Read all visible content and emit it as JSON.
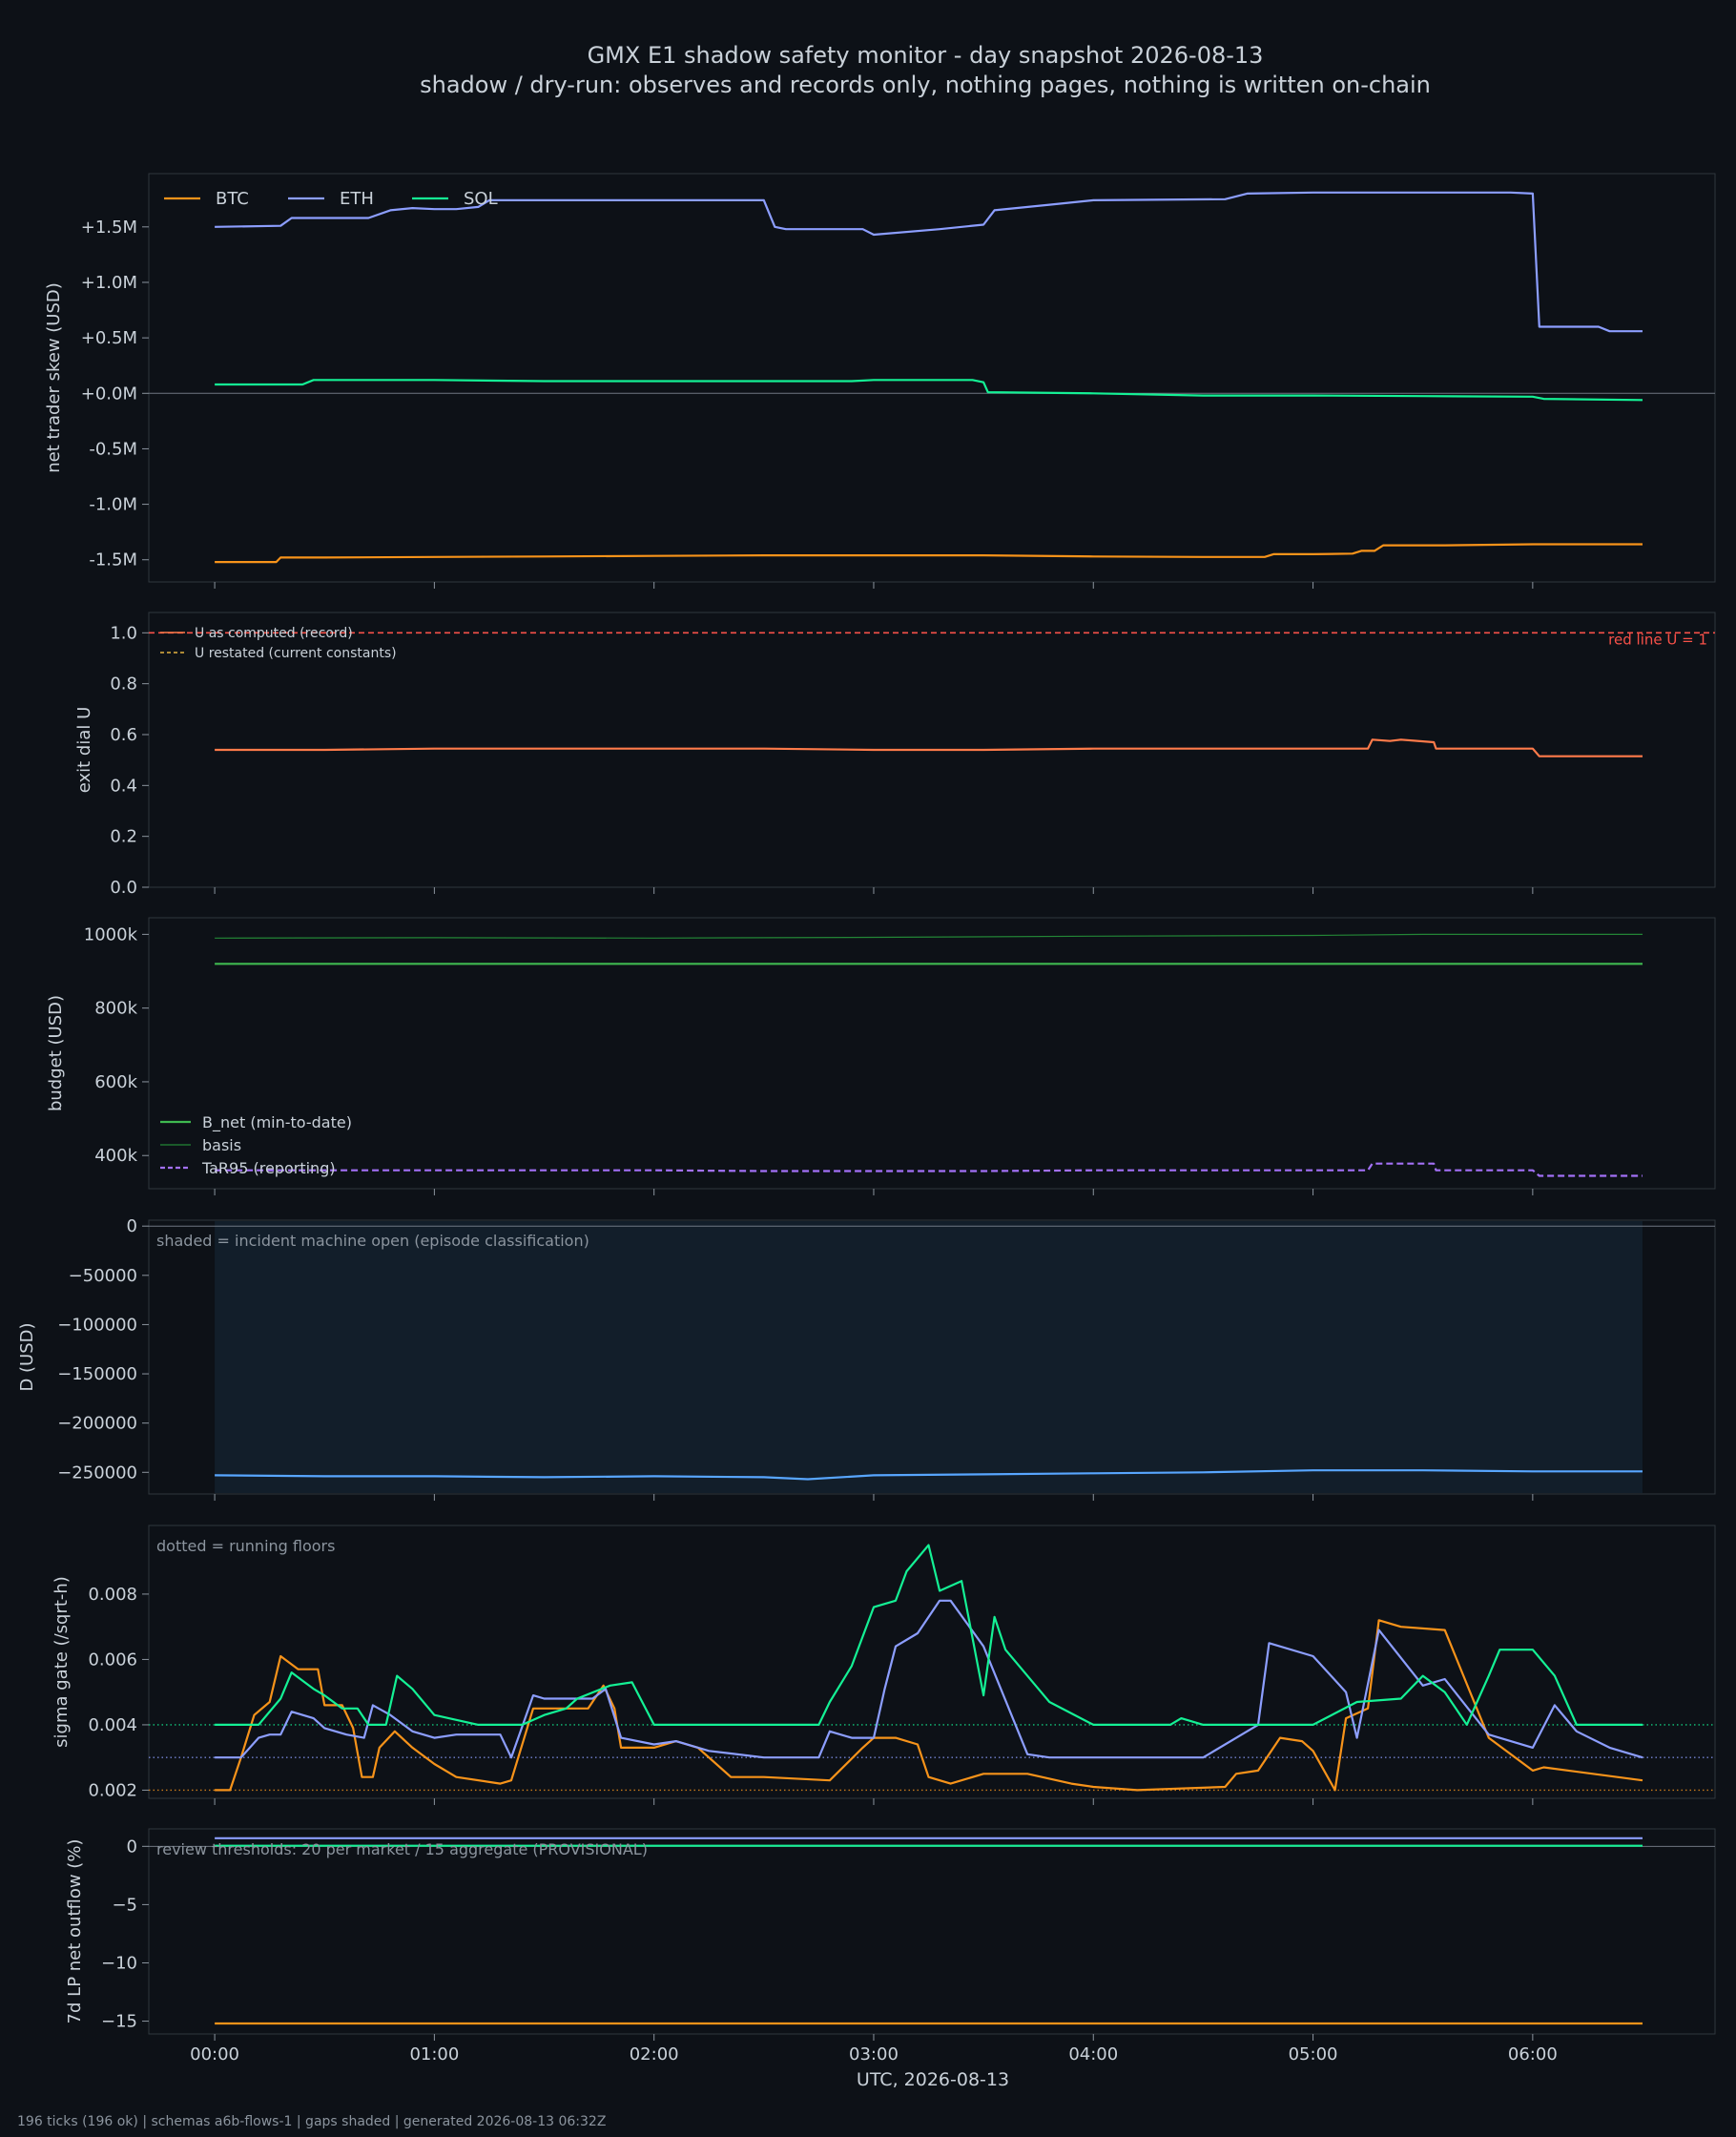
{
  "figure": {
    "title": "GMX E1 shadow safety monitor - day snapshot 2026-08-13",
    "subtitle": "shadow / dry-run: observes and records only, nothing pages, nothing is written on-chain",
    "footer": "196 ticks (196 ok) | schemas a6b-flows-1 | gaps shaded | generated 2026-08-13 06:32Z",
    "xlabel": "UTC, 2026-08-13",
    "x_tick_labels": [
      "00:00",
      "01:00",
      "02:00",
      "03:00",
      "04:00",
      "05:00",
      "06:00"
    ],
    "colors": {
      "background": "#0d1117",
      "panel_border": "#30363d",
      "text": "#c9d1d9",
      "muted_text": "#8b949e",
      "btc": "#f7931a",
      "eth": "#8c9eff",
      "sol": "#14f195",
      "u_computed": "#ff7b4a",
      "red_line": "#f85149",
      "u_restated": "#e3b341",
      "b_net": "#3fb950",
      "basis": "#238636",
      "tar95": "#a371f7",
      "d_line": "#58a6ff",
      "incident_shade": "#121e2a"
    }
  },
  "chart_data": [
    {
      "type": "line",
      "ylabel": "net trader skew (USD)",
      "y_tick_labels": [
        "+1.5M",
        "+1.0M",
        "+0.5M",
        "+0.0M",
        "-0.5M",
        "-1.0M",
        "-1.5M"
      ],
      "y_ticks": [
        1500000,
        1000000,
        500000,
        0,
        -500000,
        -1000000,
        -1500000
      ],
      "ylim": [
        -1700000,
        1980000
      ],
      "xlim": [
        -0.3,
        6.83
      ],
      "legend": "top-left, horizontal",
      "series": [
        {
          "name": "BTC",
          "color_key": "btc",
          "x": [
            0,
            0.28,
            0.3,
            0.5,
            1.0,
            1.5,
            2.0,
            2.5,
            3.0,
            3.5,
            4.0,
            4.5,
            4.78,
            4.82,
            5.0,
            5.18,
            5.22,
            5.28,
            5.32,
            5.6,
            6.0,
            6.5
          ],
          "y": [
            -1520000,
            -1520000,
            -1480000,
            -1480000,
            -1475000,
            -1470000,
            -1465000,
            -1460000,
            -1460000,
            -1460000,
            -1470000,
            -1475000,
            -1475000,
            -1450000,
            -1450000,
            -1445000,
            -1420000,
            -1420000,
            -1370000,
            -1370000,
            -1360000,
            -1360000
          ]
        },
        {
          "name": "ETH",
          "color_key": "eth",
          "x": [
            0,
            0.3,
            0.35,
            0.7,
            0.8,
            0.9,
            1.0,
            1.1,
            1.2,
            1.25,
            1.5,
            2.0,
            2.5,
            2.55,
            2.6,
            2.95,
            3.0,
            3.3,
            3.5,
            3.55,
            3.8,
            4.0,
            4.6,
            4.7,
            5.0,
            5.5,
            5.9,
            6.0,
            6.03,
            6.3,
            6.35,
            6.5
          ],
          "y": [
            1500000,
            1510000,
            1580000,
            1580000,
            1650000,
            1670000,
            1660000,
            1660000,
            1680000,
            1740000,
            1740000,
            1740000,
            1740000,
            1500000,
            1480000,
            1480000,
            1430000,
            1480000,
            1520000,
            1650000,
            1700000,
            1740000,
            1750000,
            1800000,
            1810000,
            1810000,
            1810000,
            1800000,
            600000,
            600000,
            560000,
            560000
          ]
        },
        {
          "name": "SOL",
          "color_key": "sol",
          "x": [
            0,
            0.4,
            0.45,
            1.0,
            1.5,
            2.0,
            2.5,
            2.9,
            3.0,
            3.45,
            3.5,
            3.52,
            4.0,
            4.5,
            5.0,
            5.5,
            6.0,
            6.05,
            6.5
          ],
          "y": [
            80000,
            80000,
            120000,
            120000,
            110000,
            110000,
            110000,
            110000,
            120000,
            120000,
            100000,
            10000,
            0,
            -20000,
            -20000,
            -25000,
            -30000,
            -50000,
            -60000
          ]
        }
      ]
    },
    {
      "type": "line",
      "ylabel": "exit dial U",
      "y_tick_labels": [
        "1.0",
        "0.8",
        "0.6",
        "0.4",
        "0.2",
        "0.0"
      ],
      "y_ticks": [
        1.0,
        0.8,
        0.6,
        0.4,
        0.2,
        0.0
      ],
      "ylim": [
        0,
        1.08
      ],
      "xlim": [
        -0.3,
        6.83
      ],
      "legend": "top-left",
      "annotation": "red line U = 1",
      "red_line_value": 1.0,
      "series": [
        {
          "name": "U as computed (record)",
          "color_key": "u_computed",
          "x": [
            0,
            0.5,
            1.0,
            1.5,
            2.0,
            2.5,
            3.0,
            3.5,
            4.0,
            4.5,
            5.0,
            5.25,
            5.27,
            5.35,
            5.4,
            5.55,
            5.56,
            6.0,
            6.03,
            6.5
          ],
          "y": [
            0.54,
            0.54,
            0.545,
            0.545,
            0.545,
            0.545,
            0.54,
            0.54,
            0.545,
            0.545,
            0.545,
            0.545,
            0.58,
            0.575,
            0.58,
            0.57,
            0.545,
            0.545,
            0.515,
            0.515
          ]
        },
        {
          "name": "U restated (current constants)",
          "color_key": "u_restated",
          "dashed": true,
          "x": [
            0,
            6.5
          ],
          "y": [
            1.0,
            1.0
          ]
        }
      ]
    },
    {
      "type": "line",
      "ylabel": "budget (USD)",
      "y_tick_labels": [
        "1000k",
        "800k",
        "600k",
        "400k"
      ],
      "y_ticks": [
        1000000,
        800000,
        600000,
        400000
      ],
      "ylim": [
        310000,
        1045000
      ],
      "xlim": [
        -0.3,
        6.83
      ],
      "legend": "bottom-left",
      "series": [
        {
          "name": "B_net (min-to-date)",
          "color_key": "b_net",
          "x": [
            0,
            6.5
          ],
          "y": [
            920000,
            920000
          ]
        },
        {
          "name": "basis",
          "color_key": "basis",
          "x": [
            0,
            1.0,
            2.0,
            3.0,
            4.0,
            5.0,
            5.5,
            6.0,
            6.5
          ],
          "y": [
            990000,
            991000,
            990000,
            992000,
            995000,
            997000,
            1000000,
            1000000,
            1000000
          ]
        },
        {
          "name": "TaR95 (reporting)",
          "color_key": "tar95",
          "dashed": true,
          "x": [
            0,
            1.0,
            2.0,
            2.5,
            3.0,
            3.5,
            4.0,
            4.5,
            5.0,
            5.25,
            5.27,
            5.55,
            5.56,
            6.0,
            6.03,
            6.5
          ],
          "y": [
            360000,
            360000,
            360000,
            358000,
            358000,
            358000,
            360000,
            360000,
            360000,
            360000,
            378000,
            378000,
            360000,
            360000,
            345000,
            345000
          ]
        }
      ]
    },
    {
      "type": "line",
      "ylabel": "D (USD)",
      "y_tick_labels": [
        "0",
        "−50000",
        "−100000",
        "−150000",
        "−200000",
        "−250000"
      ],
      "y_ticks": [
        0,
        -50000,
        -100000,
        -150000,
        -200000,
        -250000
      ],
      "ylim": [
        -272000,
        6000
      ],
      "xlim": [
        -0.3,
        6.83
      ],
      "annotation": "shaded = incident machine open (episode classification)",
      "shade_x": [
        0,
        6.5
      ],
      "series": [
        {
          "name": "D",
          "color_key": "d_line",
          "x": [
            0,
            0.5,
            1.0,
            1.5,
            2.0,
            2.5,
            2.7,
            3.0,
            3.5,
            4.0,
            4.5,
            5.0,
            5.5,
            6.0,
            6.5
          ],
          "y": [
            -253000,
            -254000,
            -254000,
            -255000,
            -254000,
            -255000,
            -257000,
            -253000,
            -252000,
            -251000,
            -250000,
            -248000,
            -248000,
            -249000,
            -249000
          ]
        }
      ]
    },
    {
      "type": "line",
      "ylabel": "sigma gate (/sqrt-h)",
      "y_tick_labels": [
        "0.008",
        "0.006",
        "0.004",
        "0.002"
      ],
      "y_ticks": [
        0.008,
        0.006,
        0.004,
        0.002
      ],
      "ylim": [
        0.00175,
        0.0101
      ],
      "xlim": [
        -0.3,
        6.83
      ],
      "annotation": "dotted = running floors",
      "floors": [
        {
          "color_key": "sol",
          "value": 0.004
        },
        {
          "color_key": "eth",
          "value": 0.003
        },
        {
          "color_key": "btc",
          "value": 0.002
        }
      ],
      "series": [
        {
          "name": "BTC",
          "color_key": "btc",
          "x": [
            0,
            0.07,
            0.12,
            0.18,
            0.25,
            0.3,
            0.38,
            0.47,
            0.5,
            0.58,
            0.63,
            0.67,
            0.72,
            0.75,
            0.82,
            0.9,
            1.0,
            1.1,
            1.3,
            1.35,
            1.45,
            1.55,
            1.7,
            1.77,
            1.82,
            1.85,
            2.0,
            2.1,
            2.2,
            2.35,
            2.5,
            2.8,
            2.95,
            3.0,
            3.1,
            3.2,
            3.25,
            3.35,
            3.5,
            3.7,
            3.9,
            4.0,
            4.2,
            4.6,
            4.65,
            4.75,
            4.85,
            4.95,
            5.0,
            5.1,
            5.15,
            5.25,
            5.3,
            5.4,
            5.6,
            5.8,
            6.0,
            6.05,
            6.5
          ],
          "y": [
            0.002,
            0.002,
            0.003,
            0.0043,
            0.0047,
            0.0061,
            0.0057,
            0.0057,
            0.0046,
            0.0046,
            0.0039,
            0.0024,
            0.0024,
            0.0033,
            0.0038,
            0.0033,
            0.0028,
            0.0024,
            0.0022,
            0.0023,
            0.0045,
            0.0045,
            0.0045,
            0.0052,
            0.0045,
            0.0033,
            0.0033,
            0.0035,
            0.0033,
            0.0024,
            0.0024,
            0.0023,
            0.0033,
            0.0036,
            0.0036,
            0.0034,
            0.0024,
            0.0022,
            0.0025,
            0.0025,
            0.0022,
            0.0021,
            0.002,
            0.0021,
            0.0025,
            0.0026,
            0.0036,
            0.0035,
            0.0032,
            0.002,
            0.0042,
            0.0045,
            0.0072,
            0.007,
            0.0069,
            0.0036,
            0.0026,
            0.0027,
            0.0023
          ]
        },
        {
          "name": "ETH",
          "color_key": "eth",
          "x": [
            0,
            0.12,
            0.2,
            0.25,
            0.3,
            0.35,
            0.45,
            0.5,
            0.6,
            0.68,
            0.72,
            0.8,
            0.9,
            1.0,
            1.1,
            1.3,
            1.35,
            1.45,
            1.5,
            1.6,
            1.72,
            1.78,
            1.85,
            2.0,
            2.1,
            2.25,
            2.5,
            2.75,
            2.8,
            2.9,
            3.0,
            3.05,
            3.1,
            3.2,
            3.3,
            3.35,
            3.5,
            3.7,
            3.8,
            3.85,
            4.0,
            4.5,
            4.75,
            4.8,
            5.0,
            5.15,
            5.2,
            5.3,
            5.5,
            5.6,
            5.8,
            6.0,
            6.1,
            6.2,
            6.35,
            6.5
          ],
          "y": [
            0.003,
            0.003,
            0.0036,
            0.0037,
            0.0037,
            0.0044,
            0.0042,
            0.0039,
            0.0037,
            0.0036,
            0.0046,
            0.0043,
            0.0038,
            0.0036,
            0.0037,
            0.0037,
            0.003,
            0.0049,
            0.0048,
            0.0048,
            0.0048,
            0.0051,
            0.0036,
            0.0034,
            0.0035,
            0.0032,
            0.003,
            0.003,
            0.0038,
            0.0036,
            0.0036,
            0.0051,
            0.0064,
            0.0068,
            0.0078,
            0.0078,
            0.0064,
            0.0031,
            0.003,
            0.003,
            0.003,
            0.003,
            0.004,
            0.0065,
            0.0061,
            0.005,
            0.0036,
            0.0069,
            0.0052,
            0.0054,
            0.0037,
            0.0033,
            0.0046,
            0.0038,
            0.0033,
            0.003
          ]
        },
        {
          "name": "SOL",
          "color_key": "sol",
          "x": [
            0,
            0.2,
            0.3,
            0.35,
            0.45,
            0.5,
            0.58,
            0.65,
            0.7,
            0.78,
            0.83,
            0.9,
            1.0,
            1.2,
            1.4,
            1.5,
            1.6,
            1.65,
            1.8,
            1.9,
            2.0,
            2.1,
            2.5,
            2.75,
            2.8,
            2.9,
            3.0,
            3.1,
            3.15,
            3.25,
            3.3,
            3.4,
            3.5,
            3.55,
            3.6,
            3.75,
            3.8,
            4.0,
            4.35,
            4.4,
            4.5,
            5.0,
            5.2,
            5.4,
            5.5,
            5.6,
            5.7,
            5.8,
            5.85,
            6.0,
            6.1,
            6.2,
            6.5
          ],
          "y": [
            0.004,
            0.004,
            0.0048,
            0.0056,
            0.0051,
            0.0049,
            0.0045,
            0.0045,
            0.004,
            0.004,
            0.0055,
            0.0051,
            0.0043,
            0.004,
            0.004,
            0.0043,
            0.0045,
            0.0048,
            0.0052,
            0.0053,
            0.004,
            0.004,
            0.004,
            0.004,
            0.0047,
            0.0058,
            0.0076,
            0.0078,
            0.0087,
            0.0095,
            0.0081,
            0.0084,
            0.0049,
            0.0073,
            0.0063,
            0.0051,
            0.0047,
            0.004,
            0.004,
            0.0042,
            0.004,
            0.004,
            0.0047,
            0.0048,
            0.0055,
            0.005,
            0.004,
            0.0055,
            0.0063,
            0.0063,
            0.0055,
            0.004,
            0.004
          ]
        }
      ]
    },
    {
      "type": "line",
      "ylabel": "7d LP net outflow (%)",
      "y_tick_labels": [
        "0",
        "−5",
        "−10",
        "−15"
      ],
      "y_ticks": [
        0,
        -5,
        -10,
        -15
      ],
      "ylim": [
        -16.1,
        1.5
      ],
      "xlim": [
        -0.3,
        6.83
      ],
      "annotation": "review thresholds: 20 per market / 15 aggregate (PROVISIONAL)",
      "series": [
        {
          "name": "BTC",
          "color_key": "btc",
          "x": [
            0,
            6.5
          ],
          "y": [
            -15.2,
            -15.2
          ]
        },
        {
          "name": "ETH",
          "color_key": "eth",
          "x": [
            0,
            6.5
          ],
          "y": [
            0.7,
            0.7
          ]
        },
        {
          "name": "SOL",
          "color_key": "sol",
          "x": [
            0,
            6.5
          ],
          "y": [
            0.05,
            0.05
          ]
        }
      ]
    }
  ]
}
